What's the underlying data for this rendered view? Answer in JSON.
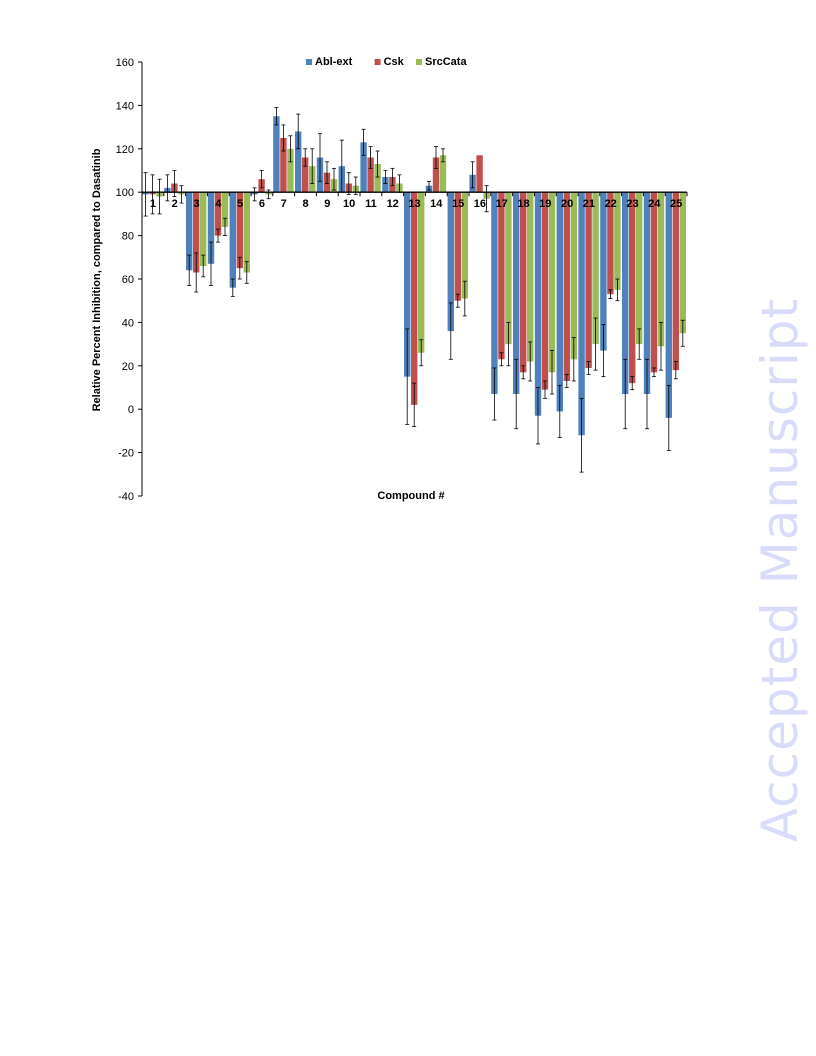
{
  "watermark": "Accepted Manuscript",
  "chart_data": {
    "type": "bar",
    "xlabel": "Compound #",
    "ylabel": "Relative Percent Inhibition,  compared to Dasatinib",
    "ylim": [
      -40,
      160
    ],
    "yticks": [
      160,
      140,
      120,
      100,
      80,
      60,
      40,
      20,
      0,
      -20,
      -40
    ],
    "baseline": 100,
    "legend_position": "top-center",
    "categories": [
      "1",
      "2",
      "3",
      "4",
      "5",
      "6",
      "7",
      "8",
      "9",
      "10",
      "11",
      "12",
      "13",
      "14",
      "15",
      "16",
      "17",
      "18",
      "19",
      "20",
      "21",
      "22",
      "23",
      "24",
      "25"
    ],
    "series": [
      {
        "name": "Abl-ext",
        "color": "#4f81bd",
        "values": [
          99,
          102,
          64,
          67,
          56,
          99,
          135,
          128,
          116,
          112,
          123,
          107,
          15,
          103,
          36,
          108,
          7,
          7,
          -3,
          -1,
          -12,
          27,
          7,
          7,
          -4
        ],
        "errors": [
          10,
          6,
          7,
          10,
          4,
          3,
          4,
          8,
          11,
          12,
          6,
          3,
          22,
          2,
          13,
          6,
          12,
          16,
          13,
          12,
          17,
          12,
          16,
          16,
          15
        ]
      },
      {
        "name": "Csk",
        "color": "#c0504d",
        "values": [
          99,
          104,
          63,
          80,
          65,
          106,
          125,
          116,
          109,
          104,
          116,
          107,
          2,
          116,
          50,
          117,
          23,
          17,
          9,
          13,
          19,
          53,
          12,
          17,
          18
        ],
        "errors": [
          9,
          6,
          9,
          3,
          5,
          4,
          6,
          4,
          5,
          5,
          5,
          4,
          10,
          5,
          3,
          0,
          3,
          3,
          4,
          3,
          3,
          2,
          3,
          2,
          4
        ],
        "labels_above_axis": true
      },
      {
        "name": "SrcCata",
        "color": "#9bbb59",
        "values": [
          98,
          99,
          66,
          84,
          63,
          99,
          120,
          112,
          106,
          103,
          113,
          104,
          26,
          117,
          51,
          97,
          30,
          22,
          17,
          23,
          30,
          55,
          30,
          29,
          35
        ],
        "errors": [
          8,
          4,
          5,
          4,
          5,
          2,
          6,
          8,
          5,
          4,
          6,
          4,
          6,
          3,
          8,
          6,
          10,
          9,
          10,
          10,
          12,
          5,
          7,
          11,
          6
        ]
      }
    ]
  }
}
